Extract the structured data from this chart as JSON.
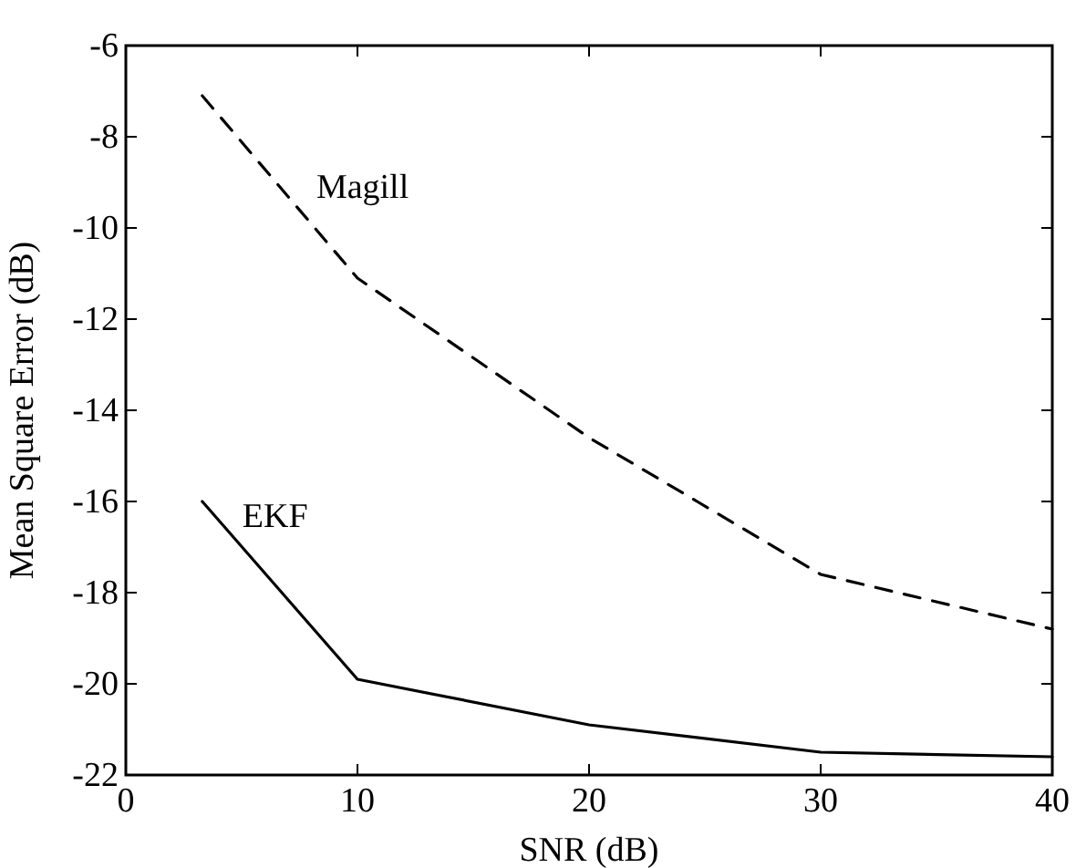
{
  "chart_data": {
    "type": "line",
    "xlabel": "SNR (dB)",
    "ylabel": "Mean Square Error (dB)",
    "x": [
      3.3,
      10,
      20,
      30,
      40
    ],
    "series": [
      {
        "name": "Magill",
        "color": "#000000",
        "line_style": "dashed",
        "values": [
          -7.1,
          -11.1,
          -14.6,
          -17.6,
          -18.8
        ]
      },
      {
        "name": "EKF",
        "color": "#000000",
        "line_style": "solid",
        "values": [
          -16.0,
          -19.9,
          -20.9,
          -21.5,
          -21.6
        ]
      }
    ],
    "xlim": [
      0,
      40
    ],
    "xticks": [
      0,
      10,
      20,
      30,
      40
    ],
    "ylim": [
      -22,
      -6
    ],
    "yticks": [
      -22,
      -20,
      -18,
      -16,
      -14,
      -12,
      -10,
      -8,
      -6
    ],
    "grid": false,
    "marker": "none"
  }
}
